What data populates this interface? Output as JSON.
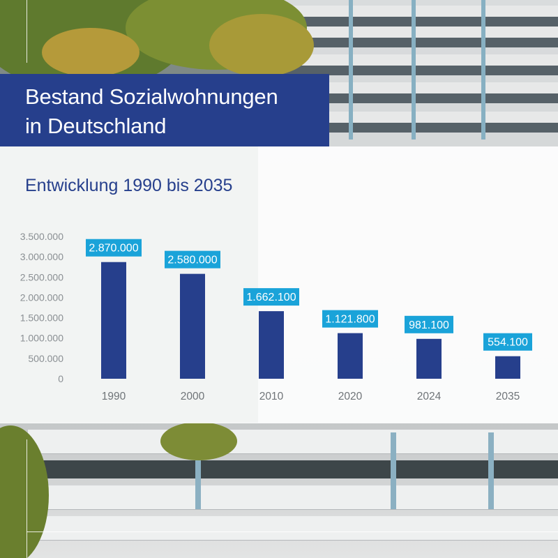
{
  "header": {
    "title_line1": "Bestand Sozialwohnungen",
    "title_line2": "in Deutschland",
    "subtitle": "Entwicklung 1990 bis 2035"
  },
  "colors": {
    "brand_blue": "#263f8c",
    "bar": "#263f8c",
    "label_bg": "#1aa3d9"
  },
  "chart_data": {
    "type": "bar",
    "categories": [
      "1990",
      "2000",
      "2010",
      "2020",
      "2024",
      "2035"
    ],
    "values": [
      2870000,
      2580000,
      1662100,
      1121800,
      981100,
      554100
    ],
    "data_labels": [
      "2.870.000",
      "2.580.000",
      "1.662.100",
      "1.121.800",
      "981.100",
      "554.100"
    ],
    "ylim": [
      0,
      3500000
    ],
    "yticks": [
      0,
      500000,
      1000000,
      1500000,
      2000000,
      2500000,
      3000000,
      3500000
    ],
    "ytick_labels": [
      "0",
      "500.000",
      "1.000.000",
      "1.500.000",
      "2.000.000",
      "2.500.000",
      "3.000.000",
      "3.500.000"
    ],
    "grid": false,
    "legend": "none"
  }
}
